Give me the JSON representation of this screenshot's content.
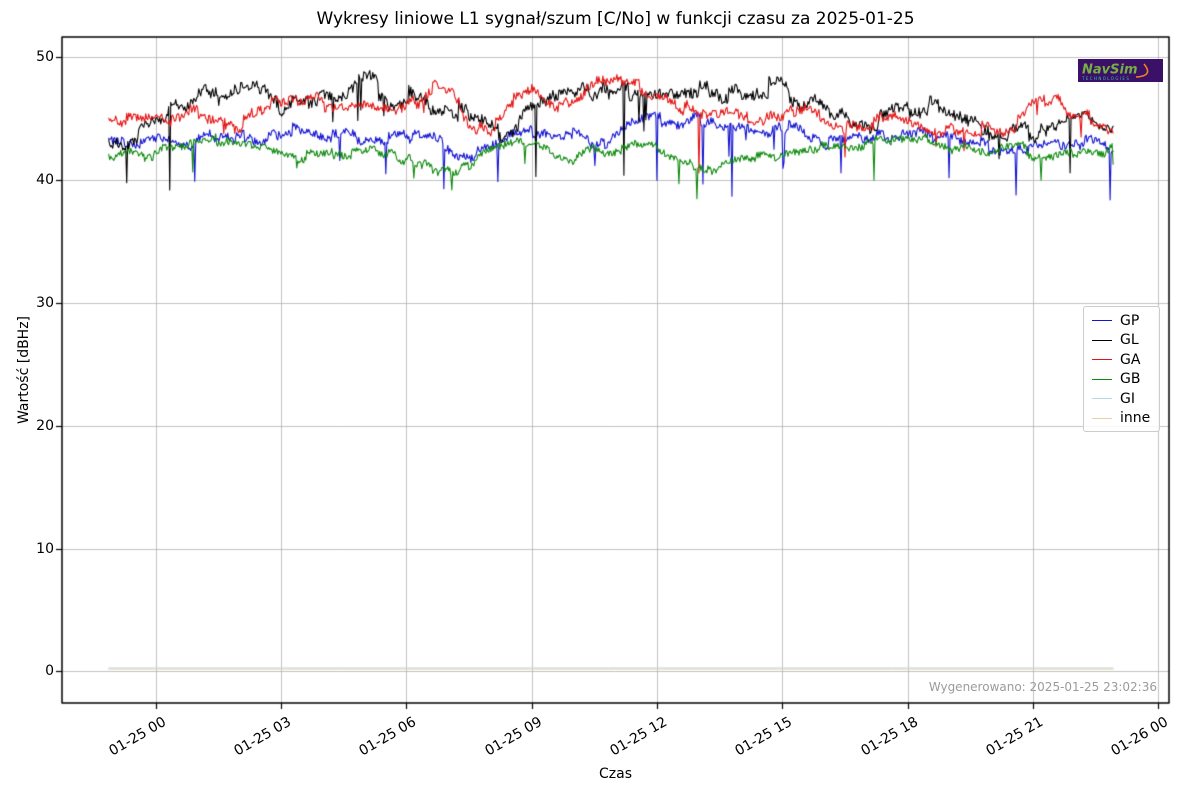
{
  "figure": {
    "title": "Wykresy liniowe L1 sygnał/szum [C/No] w funkcji czasu za 2025-01-25",
    "watermark": "Wygenerowano: 2025-01-25 23:02:36",
    "logo": {
      "name": "NavSim",
      "subtext": "TECHNOLOGIES"
    }
  },
  "chart_data": {
    "type": "line",
    "title": "Wykresy liniowe L1 sygnał/szum [C/No] w funkcji czasu za 2025-01-25",
    "xlabel": "Czas",
    "ylabel": "Wartość [dBHz]",
    "grid": true,
    "legend_position": "center-right",
    "x_tick_labels": [
      "01-25 00",
      "01-25 03",
      "01-25 06",
      "01-25 09",
      "01-25 12",
      "01-25 15",
      "01-25 18",
      "01-25 21",
      "01-26 00"
    ],
    "x_ticks_hours": [
      0,
      3,
      6,
      9,
      12,
      15,
      18,
      21,
      24
    ],
    "y_ticks": [
      0,
      10,
      20,
      30,
      40,
      50
    ],
    "xlim_hours": [
      -2.24,
      24.26
    ],
    "ylim": [
      -2.77,
      51.66
    ],
    "x_range_hours": [
      -1.12,
      22.92
    ],
    "grid_color": "#b3b3b3",
    "frame_color": "#000000",
    "series": [
      {
        "name": "GP",
        "color": "#1414d2",
        "seed": 101,
        "hold": 8,
        "wander": 0.5,
        "jitter": 0.34,
        "needle_prob": 0.016,
        "needle_depth": 3.0,
        "anchors": [
          [
            -1.12,
            43.6
          ],
          [
            0,
            43.4
          ],
          [
            0.7,
            42.8
          ],
          [
            1.3,
            43.6
          ],
          [
            2,
            43.3
          ],
          [
            2.7,
            43.5
          ],
          [
            3.3,
            44.3
          ],
          [
            4,
            43.9
          ],
          [
            4.6,
            43.6
          ],
          [
            5.3,
            43.3
          ],
          [
            6,
            43.9
          ],
          [
            6.6,
            43.3
          ],
          [
            7.3,
            42.4
          ],
          [
            8,
            42.6
          ],
          [
            8.6,
            43.4
          ],
          [
            9.3,
            43.9
          ],
          [
            10,
            43.3
          ],
          [
            10.6,
            42.9
          ],
          [
            11.3,
            44.4
          ],
          [
            12,
            44.6
          ],
          [
            12.6,
            44.4
          ],
          [
            13.3,
            44.5
          ],
          [
            14,
            44.6
          ],
          [
            14.6,
            44.4
          ],
          [
            15.3,
            44.5
          ],
          [
            16,
            42.9
          ],
          [
            16.6,
            43.3
          ],
          [
            17.3,
            43.4
          ],
          [
            18,
            43.4
          ],
          [
            18.6,
            43.3
          ],
          [
            19.3,
            43.4
          ],
          [
            20,
            42.5
          ],
          [
            20.6,
            42.9
          ],
          [
            21.3,
            43.3
          ],
          [
            22,
            43.3
          ],
          [
            22.6,
            43.4
          ],
          [
            22.92,
            42.9
          ]
        ],
        "spikes": [
          [
            6.9,
            39.3
          ],
          [
            8.2,
            39.9
          ],
          [
            12.0,
            40.0
          ],
          [
            13.1,
            39.7
          ],
          [
            13.8,
            38.7
          ],
          [
            16.4,
            40.6
          ],
          [
            19.0,
            40.2
          ],
          [
            20.6,
            38.8
          ],
          [
            22.85,
            38.4
          ]
        ]
      },
      {
        "name": "GL",
        "color": "#000000",
        "seed": 202,
        "hold": 10,
        "wander": 0.85,
        "jitter": 0.45,
        "needle_prob": 0.01,
        "needle_depth": 3.2,
        "anchors": [
          [
            -1.12,
            43.5
          ],
          [
            0,
            44.5
          ],
          [
            1,
            46
          ],
          [
            2,
            47.5
          ],
          [
            2.6,
            47.8
          ],
          [
            3,
            46.5
          ],
          [
            3.8,
            47.7
          ],
          [
            4.5,
            46.5
          ],
          [
            5,
            47.5
          ],
          [
            5.6,
            46.3
          ],
          [
            6,
            46.8
          ],
          [
            6.5,
            45.5
          ],
          [
            7,
            46
          ],
          [
            7.7,
            44.8
          ],
          [
            8.3,
            44.3
          ],
          [
            9,
            46.3
          ],
          [
            9.7,
            46.5
          ],
          [
            10.5,
            46.8
          ],
          [
            11,
            47
          ],
          [
            11.8,
            47.2
          ],
          [
            12.5,
            46.6
          ],
          [
            13,
            46.8
          ],
          [
            13.7,
            46.5
          ],
          [
            14.3,
            46.8
          ],
          [
            14.8,
            48.1
          ],
          [
            15.3,
            46.3
          ],
          [
            15.8,
            46.8
          ],
          [
            16.3,
            45.8
          ],
          [
            17,
            44.8
          ],
          [
            17.5,
            45.3
          ],
          [
            18,
            45.8
          ],
          [
            18.5,
            46.2
          ],
          [
            19,
            45.6
          ],
          [
            19.5,
            44.6
          ],
          [
            20,
            44.4
          ],
          [
            20.5,
            44.6
          ],
          [
            21,
            44.3
          ],
          [
            21.5,
            43.8
          ],
          [
            22,
            44.6
          ],
          [
            22.5,
            44.3
          ],
          [
            22.92,
            44.3
          ]
        ],
        "spikes": [
          [
            -0.7,
            39.8
          ],
          [
            0.35,
            39.2
          ],
          [
            9.1,
            40.3
          ],
          [
            11.2,
            40.4
          ],
          [
            21.9,
            40.6
          ]
        ]
      },
      {
        "name": "GA",
        "color": "#e51414",
        "seed": 303,
        "hold": 9,
        "wander": 0.62,
        "jitter": 0.36,
        "needle_prob": 0.006,
        "needle_depth": 2.2,
        "anchors": [
          [
            -1.12,
            44.3
          ],
          [
            0,
            44.8
          ],
          [
            1,
            45
          ],
          [
            2,
            44.6
          ],
          [
            2.8,
            46.3
          ],
          [
            3.3,
            46.6
          ],
          [
            4,
            45.8
          ],
          [
            4.6,
            45.9
          ],
          [
            5.3,
            45.5
          ],
          [
            6,
            45.6
          ],
          [
            6.6,
            47.3
          ],
          [
            7,
            47.2
          ],
          [
            7.5,
            44.8
          ],
          [
            8,
            44.5
          ],
          [
            8.6,
            46.8
          ],
          [
            9,
            46.9
          ],
          [
            9.6,
            45.4
          ],
          [
            10.3,
            47
          ],
          [
            11,
            47.5
          ],
          [
            11.6,
            47.3
          ],
          [
            12.3,
            46.5
          ],
          [
            13,
            45.2
          ],
          [
            13.6,
            44.9
          ],
          [
            14.3,
            45.2
          ],
          [
            15,
            45.2
          ],
          [
            15.6,
            46.3
          ],
          [
            16.3,
            45.2
          ],
          [
            17,
            44.8
          ],
          [
            17.6,
            45
          ],
          [
            18.3,
            44.6
          ],
          [
            19,
            44.5
          ],
          [
            19.6,
            44.8
          ],
          [
            20.3,
            44.5
          ],
          [
            21,
            46.3
          ],
          [
            21.5,
            46.6
          ],
          [
            22,
            44.9
          ],
          [
            22.6,
            44.8
          ],
          [
            22.92,
            44.2
          ]
        ],
        "spikes": [
          [
            13.0,
            40.6
          ],
          [
            16.5,
            41.9
          ]
        ]
      },
      {
        "name": "GB",
        "color": "#0f8a0f",
        "seed": 404,
        "hold": 9,
        "wander": 0.45,
        "jitter": 0.3,
        "needle_prob": 0.009,
        "needle_depth": 2.4,
        "anchors": [
          [
            -1.12,
            42.0
          ],
          [
            0,
            42.2
          ],
          [
            0.7,
            42.4
          ],
          [
            1.5,
            42.9
          ],
          [
            2.3,
            42.4
          ],
          [
            3,
            42.3
          ],
          [
            3.7,
            42.0
          ],
          [
            4.5,
            42.4
          ],
          [
            5.2,
            41.9
          ],
          [
            6,
            41.6
          ],
          [
            6.7,
            40.8
          ],
          [
            7.3,
            40.6
          ],
          [
            8,
            42.3
          ],
          [
            8.7,
            42.5
          ],
          [
            9.3,
            42.2
          ],
          [
            10,
            41.9
          ],
          [
            10.7,
            42.4
          ],
          [
            11.3,
            42.9
          ],
          [
            12,
            42.5
          ],
          [
            12.7,
            41.4
          ],
          [
            13.3,
            41.2
          ],
          [
            14,
            42.2
          ],
          [
            14.7,
            42.4
          ],
          [
            15.3,
            42.9
          ],
          [
            16,
            43.0
          ],
          [
            16.7,
            42.9
          ],
          [
            17.3,
            43.0
          ],
          [
            18,
            43.0
          ],
          [
            18.7,
            42.9
          ],
          [
            19.3,
            42.4
          ],
          [
            20,
            42.0
          ],
          [
            20.7,
            42.2
          ],
          [
            21.3,
            41.5
          ],
          [
            22,
            41.7
          ],
          [
            22.7,
            41.5
          ],
          [
            22.92,
            43.0
          ]
        ],
        "spikes": [
          [
            7.1,
            39.2
          ],
          [
            12.95,
            38.5
          ],
          [
            17.2,
            40.0
          ],
          [
            21.2,
            40.0
          ]
        ]
      },
      {
        "name": "GI",
        "color": "#b8d9e8",
        "flat": 0.28
      },
      {
        "name": "inne",
        "color": "#e8cfa4",
        "flat": 0.2
      }
    ]
  }
}
